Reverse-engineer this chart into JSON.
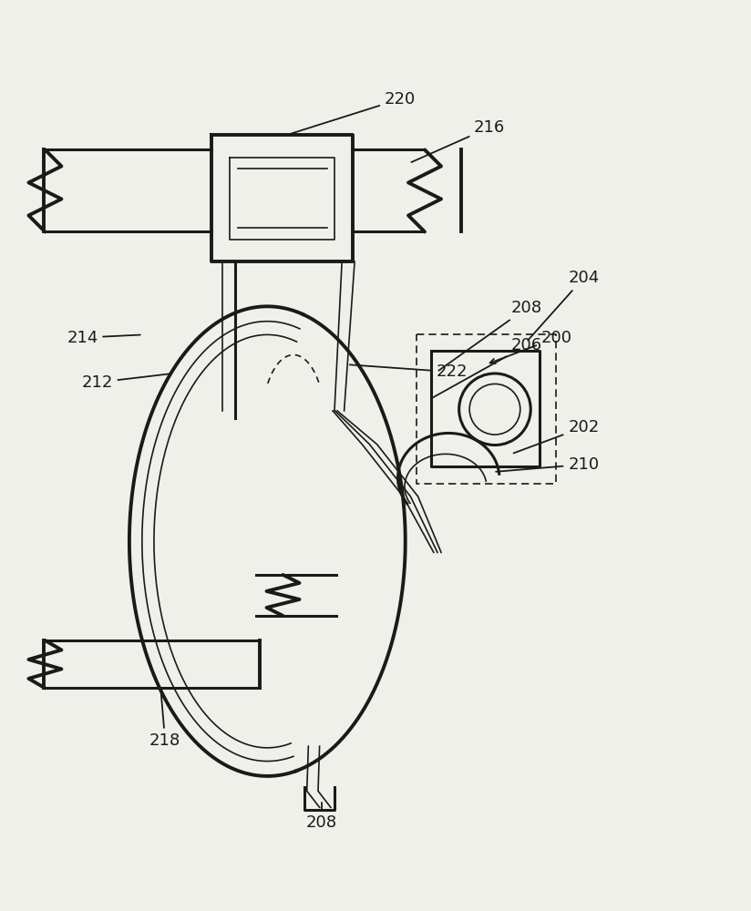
{
  "background_color": "#f0f0eb",
  "figsize": [
    8.24,
    10.0
  ],
  "dpi": 100,
  "line_color": "#1a1a1a",
  "label_fontsize": 13
}
